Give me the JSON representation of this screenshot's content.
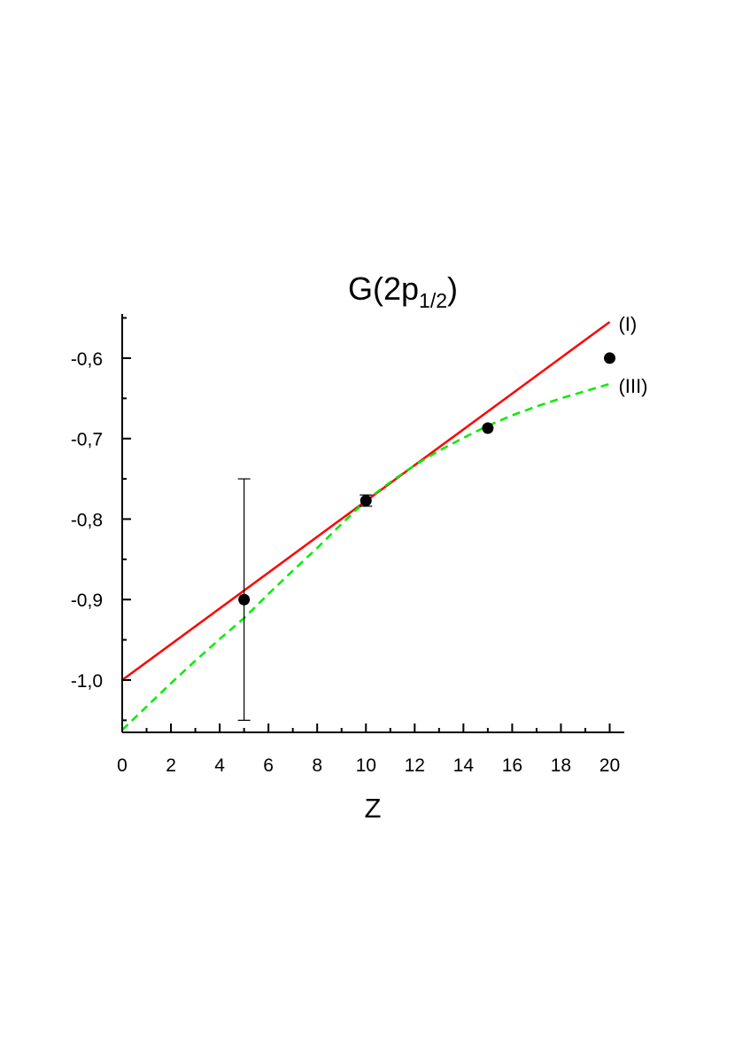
{
  "chart_data": {
    "type": "line",
    "title": {
      "main": "G(2p",
      "sub": "1/2",
      "close": ")"
    },
    "xlabel": "Z",
    "ylabel": "",
    "xlim": [
      0,
      20.6
    ],
    "ylim": [
      -1.065,
      -0.545
    ],
    "x_ticks": [
      0,
      2,
      4,
      6,
      8,
      10,
      12,
      14,
      16,
      18,
      20
    ],
    "x_tick_labels": [
      "0",
      "2",
      "4",
      "6",
      "8",
      "10",
      "12",
      "14",
      "16",
      "18",
      "20"
    ],
    "y_ticks": [
      -1.0,
      -0.9,
      -0.8,
      -0.7,
      -0.6
    ],
    "y_tick_labels": [
      "-1,0",
      "-0,9",
      "-0,8",
      "-0,7",
      "-0,6"
    ],
    "grid": false,
    "series": [
      {
        "name": "(I)",
        "style": "solid",
        "color": "#ff0000",
        "x": [
          0,
          20
        ],
        "y": [
          -1.0,
          -0.555
        ]
      },
      {
        "name": "(III)",
        "style": "dashed",
        "color": "#00ee00",
        "x": [
          0,
          1,
          2,
          3,
          4,
          5,
          6,
          7,
          8,
          9,
          10,
          11,
          12,
          13,
          14,
          15,
          16,
          17,
          18,
          19,
          20
        ],
        "y": [
          -1.062,
          -1.033,
          -1.004,
          -0.976,
          -0.949,
          -0.923,
          -0.893,
          -0.864,
          -0.836,
          -0.806,
          -0.777,
          -0.754,
          -0.733,
          -0.715,
          -0.699,
          -0.684,
          -0.671,
          -0.66,
          -0.65,
          -0.641,
          -0.632
        ]
      },
      {
        "name": "",
        "style": "points",
        "color": "#000000",
        "x": [
          5,
          10,
          15,
          20
        ],
        "y": [
          -0.9,
          -0.777,
          -0.687,
          -0.6
        ],
        "err": [
          0.15,
          0.007,
          0,
          0
        ]
      }
    ]
  }
}
